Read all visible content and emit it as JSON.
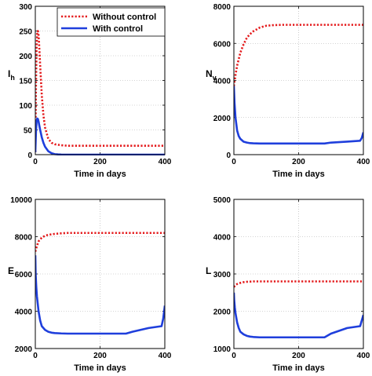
{
  "chart_data": [
    {
      "type": "line",
      "xlabel": "Time in days",
      "ylabel": "I",
      "ylabel_sub": "h",
      "xlim": [
        0,
        400
      ],
      "ylim": [
        0,
        300
      ],
      "xticks": [
        0,
        200,
        400
      ],
      "yticks": [
        0,
        50,
        100,
        150,
        200,
        250,
        300
      ],
      "grid": true,
      "legend": "top-right",
      "series": [
        {
          "name": "Without control",
          "color": "#e41a1c",
          "style": "dotted",
          "x": [
            0,
            2,
            4,
            6,
            8,
            10,
            12,
            15,
            20,
            25,
            30,
            40,
            50,
            60,
            80,
            100,
            150,
            200,
            300,
            400
          ],
          "y": [
            5,
            140,
            215,
            245,
            250,
            242,
            220,
            180,
            120,
            80,
            55,
            32,
            24,
            21,
            19,
            18,
            18,
            18,
            18,
            18
          ]
        },
        {
          "name": "With control",
          "color": "#1f3fdc",
          "style": "solid",
          "x": [
            0,
            2,
            4,
            6,
            8,
            10,
            12,
            15,
            20,
            25,
            30,
            40,
            50,
            60,
            70,
            80,
            100,
            150,
            200,
            300,
            400
          ],
          "y": [
            5,
            45,
            68,
            73,
            72,
            67,
            60,
            50,
            35,
            24,
            16,
            7,
            3,
            1,
            0.5,
            0.2,
            0,
            0,
            0,
            0,
            0
          ]
        }
      ]
    },
    {
      "type": "line",
      "xlabel": "Time in days",
      "ylabel": "N",
      "ylabel_sub": "v",
      "xlim": [
        0,
        400
      ],
      "ylim": [
        0,
        8000
      ],
      "xticks": [
        0,
        200,
        400
      ],
      "yticks": [
        0,
        2000,
        4000,
        6000,
        8000
      ],
      "grid": true,
      "series": [
        {
          "name": "Without control",
          "color": "#e41a1c",
          "style": "dotted",
          "x": [
            0,
            5,
            10,
            20,
            30,
            40,
            50,
            60,
            80,
            100,
            120,
            150,
            200,
            300,
            400
          ],
          "y": [
            3700,
            4300,
            4800,
            5500,
            5950,
            6300,
            6500,
            6650,
            6850,
            6950,
            6980,
            7000,
            7000,
            7000,
            7000
          ]
        },
        {
          "name": "With control",
          "color": "#1f3fdc",
          "style": "solid",
          "x": [
            0,
            2,
            5,
            10,
            15,
            20,
            30,
            40,
            50,
            60,
            80,
            100,
            150,
            200,
            250,
            280,
            300,
            350,
            390,
            395,
            400
          ],
          "y": [
            3700,
            2800,
            2000,
            1300,
            1000,
            850,
            700,
            650,
            620,
            610,
            600,
            600,
            600,
            600,
            600,
            600,
            650,
            700,
            750,
            900,
            1200
          ]
        }
      ]
    },
    {
      "type": "line",
      "xlabel": "Time in days",
      "ylabel": "E",
      "xlim": [
        0,
        400
      ],
      "ylim": [
        2000,
        10000
      ],
      "xticks": [
        0,
        200,
        400
      ],
      "yticks": [
        2000,
        4000,
        6000,
        8000,
        10000
      ],
      "grid": true,
      "series": [
        {
          "name": "Without control",
          "color": "#e41a1c",
          "style": "dotted",
          "x": [
            0,
            5,
            10,
            20,
            30,
            40,
            60,
            80,
            100,
            150,
            200,
            300,
            400
          ],
          "y": [
            7200,
            7500,
            7750,
            7950,
            8050,
            8100,
            8150,
            8180,
            8200,
            8200,
            8200,
            8200,
            8200
          ]
        },
        {
          "name": "With control",
          "color": "#1f3fdc",
          "style": "solid",
          "x": [
            0,
            1,
            3,
            5,
            10,
            15,
            20,
            30,
            40,
            50,
            60,
            80,
            100,
            150,
            200,
            250,
            280,
            300,
            350,
            390,
            395,
            400
          ],
          "y": [
            7000,
            6000,
            5300,
            4800,
            4000,
            3500,
            3200,
            3000,
            2900,
            2850,
            2830,
            2810,
            2800,
            2800,
            2800,
            2800,
            2800,
            2900,
            3100,
            3200,
            3600,
            4300
          ]
        }
      ]
    },
    {
      "type": "line",
      "xlabel": "Time in days",
      "ylabel": "L",
      "xlim": [
        0,
        400
      ],
      "ylim": [
        1000,
        5000
      ],
      "xticks": [
        0,
        200,
        400
      ],
      "yticks": [
        1000,
        2000,
        3000,
        4000,
        5000
      ],
      "grid": true,
      "series": [
        {
          "name": "Without control",
          "color": "#e41a1c",
          "style": "dotted",
          "x": [
            0,
            5,
            10,
            20,
            30,
            40,
            60,
            80,
            100,
            150,
            200,
            300,
            400
          ],
          "y": [
            2650,
            2700,
            2730,
            2760,
            2780,
            2790,
            2800,
            2800,
            2800,
            2800,
            2800,
            2800,
            2800
          ]
        },
        {
          "name": "With control",
          "color": "#1f3fdc",
          "style": "solid",
          "x": [
            0,
            1,
            3,
            5,
            10,
            15,
            20,
            30,
            40,
            50,
            60,
            80,
            100,
            150,
            200,
            250,
            280,
            300,
            350,
            390,
            395,
            400
          ],
          "y": [
            2500,
            2300,
            2100,
            1950,
            1700,
            1550,
            1450,
            1380,
            1340,
            1320,
            1310,
            1300,
            1300,
            1300,
            1300,
            1300,
            1300,
            1400,
            1550,
            1600,
            1750,
            1900
          ]
        }
      ]
    }
  ]
}
